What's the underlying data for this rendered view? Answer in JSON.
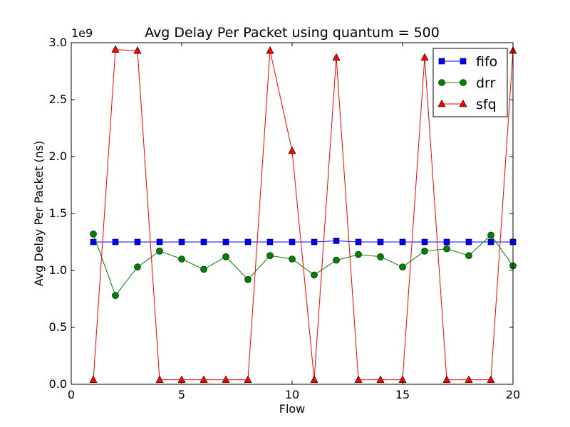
{
  "chart_data": {
    "type": "line",
    "title": "Avg Delay Per Packet using quantum = 500",
    "xlabel": "Flow",
    "ylabel": "Avg Delay Per Packet (ns)",
    "y_offset_label": "1e9",
    "xlim": [
      0,
      20
    ],
    "ylim": [
      0,
      3000000000
    ],
    "xticks": [
      0,
      5,
      10,
      15,
      20
    ],
    "xtick_labels": [
      "0",
      "5",
      "10",
      "15",
      "20"
    ],
    "yticks": [
      0,
      500000000,
      1000000000,
      1500000000,
      2000000000,
      2500000000,
      3000000000
    ],
    "ytick_labels": [
      "0.0",
      "0.5",
      "1.0",
      "1.5",
      "2.0",
      "2.5",
      "3.0"
    ],
    "grid": false,
    "legend_position": "top-right",
    "x": [
      1,
      2,
      3,
      4,
      5,
      6,
      7,
      8,
      9,
      10,
      11,
      12,
      13,
      14,
      15,
      16,
      17,
      18,
      19,
      20
    ],
    "series": [
      {
        "name": "fifo",
        "color": "#0000ff",
        "marker": "square",
        "values": [
          1250000000,
          1250000000,
          1250000000,
          1250000000,
          1250000000,
          1250000000,
          1250000000,
          1250000000,
          1250000000,
          1250000000,
          1250000000,
          1260000000,
          1250000000,
          1250000000,
          1250000000,
          1250000000,
          1250000000,
          1250000000,
          1250000000,
          1250000000
        ]
      },
      {
        "name": "drr",
        "color": "#008000",
        "marker": "circle",
        "values": [
          1320000000,
          780000000,
          1030000000,
          1170000000,
          1100000000,
          1010000000,
          1120000000,
          920000000,
          1130000000,
          1100000000,
          960000000,
          1090000000,
          1140000000,
          1120000000,
          1030000000,
          1170000000,
          1190000000,
          1130000000,
          1310000000,
          1040000000
        ]
      },
      {
        "name": "sfq",
        "color": "#ff0000",
        "marker": "triangle",
        "values": [
          40000000,
          2940000000,
          2930000000,
          40000000,
          40000000,
          40000000,
          40000000,
          40000000,
          2930000000,
          2050000000,
          40000000,
          2870000000,
          40000000,
          40000000,
          40000000,
          2870000000,
          40000000,
          40000000,
          40000000,
          2930000000
        ]
      }
    ]
  }
}
